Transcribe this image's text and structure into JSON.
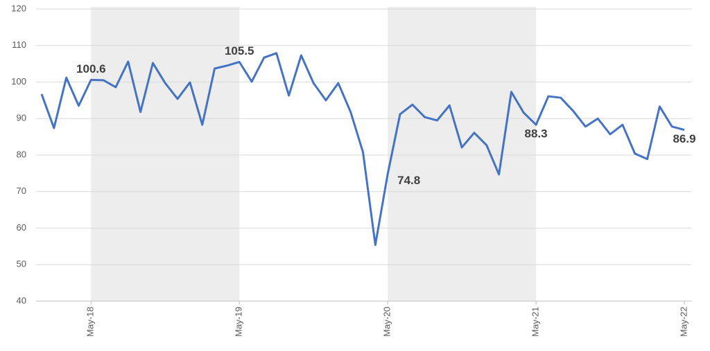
{
  "chart_data": {
    "type": "line",
    "categories": [
      null,
      null,
      null,
      null,
      "May-18",
      null,
      null,
      null,
      null,
      null,
      null,
      null,
      null,
      null,
      null,
      null,
      "May-19",
      null,
      null,
      null,
      null,
      null,
      null,
      null,
      null,
      null,
      null,
      null,
      "May-20",
      null,
      null,
      null,
      null,
      null,
      null,
      null,
      null,
      null,
      null,
      null,
      "May-21",
      null,
      null,
      null,
      null,
      null,
      null,
      null,
      null,
      null,
      null,
      null,
      "May-22"
    ],
    "series": [
      {
        "color": "#4472c4",
        "values": [
          96.7,
          87.4,
          101.2,
          93.5,
          100.6,
          100.5,
          98.6,
          105.6,
          91.8,
          105.2,
          99.7,
          95.4,
          99.9,
          88.3,
          103.7,
          104.5,
          105.5,
          100.1,
          106.7,
          107.9,
          96.3,
          107.3,
          99.7,
          95.0,
          99.7,
          91.8,
          80.8,
          55.4,
          74.8,
          91.2,
          93.8,
          90.4,
          89.5,
          93.6,
          82.1,
          86.1,
          82.7,
          74.7,
          97.3,
          91.6,
          88.3,
          96.1,
          95.7,
          92.1,
          87.8,
          90.0,
          85.7,
          88.3,
          80.4,
          78.9,
          93.3,
          87.8,
          86.9
        ],
        "value_labels": [
          null,
          null,
          null,
          null,
          "100.6",
          null,
          null,
          null,
          null,
          null,
          null,
          null,
          null,
          null,
          null,
          null,
          "105.5",
          null,
          null,
          null,
          null,
          null,
          null,
          null,
          null,
          null,
          null,
          null,
          "74.8",
          null,
          null,
          null,
          null,
          null,
          null,
          null,
          null,
          null,
          null,
          null,
          "88.3",
          null,
          null,
          null,
          null,
          null,
          null,
          null,
          null,
          null,
          null,
          null,
          "86.9"
        ]
      }
    ],
    "ylim": [
      40,
      120
    ],
    "yticks": [
      40,
      50,
      60,
      70,
      80,
      90,
      100,
      110,
      120
    ],
    "grid": true,
    "shading_color": "#ededed"
  }
}
